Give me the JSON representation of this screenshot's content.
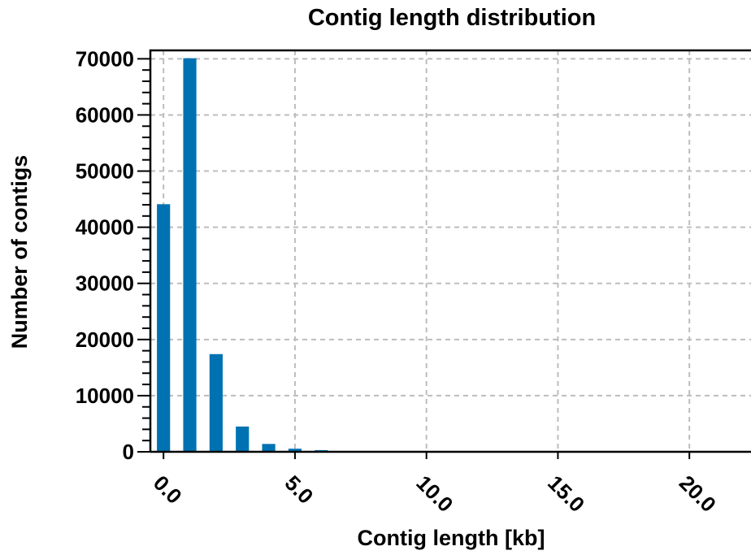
{
  "chart_data": {
    "type": "bar",
    "title": "Contig length distribution",
    "xlabel": "Contig length [kb]",
    "ylabel": "Number of contigs",
    "xlim": [
      -0.5,
      22.5
    ],
    "ylim": [
      0,
      71500
    ],
    "xticks": [
      0.0,
      5.0,
      10.0,
      15.0,
      20.0
    ],
    "xtick_labels": [
      "0.0",
      "5.0",
      "10.0",
      "15.0",
      "20.0"
    ],
    "yticks": [
      0,
      10000,
      20000,
      30000,
      40000,
      50000,
      60000,
      70000
    ],
    "ytick_labels": [
      "0",
      "10000",
      "20000",
      "30000",
      "40000",
      "50000",
      "60000",
      "70000"
    ],
    "grid": true,
    "bar_color": "#0072b2",
    "bins": [
      0.0,
      1.0,
      2.0,
      3.0,
      4.0,
      5.0,
      6.0,
      7.0,
      8.0,
      9.0,
      10.0,
      11.0,
      12.0,
      13.0,
      14.0,
      15.0,
      16.0,
      17.0,
      18.0,
      19.0,
      20.0,
      21.0,
      22.0
    ],
    "values": [
      44100,
      70100,
      17400,
      4500,
      1400,
      550,
      300,
      80,
      40,
      20,
      10,
      5,
      3,
      2,
      1,
      1,
      1,
      0,
      0,
      0,
      0,
      0,
      0
    ]
  }
}
